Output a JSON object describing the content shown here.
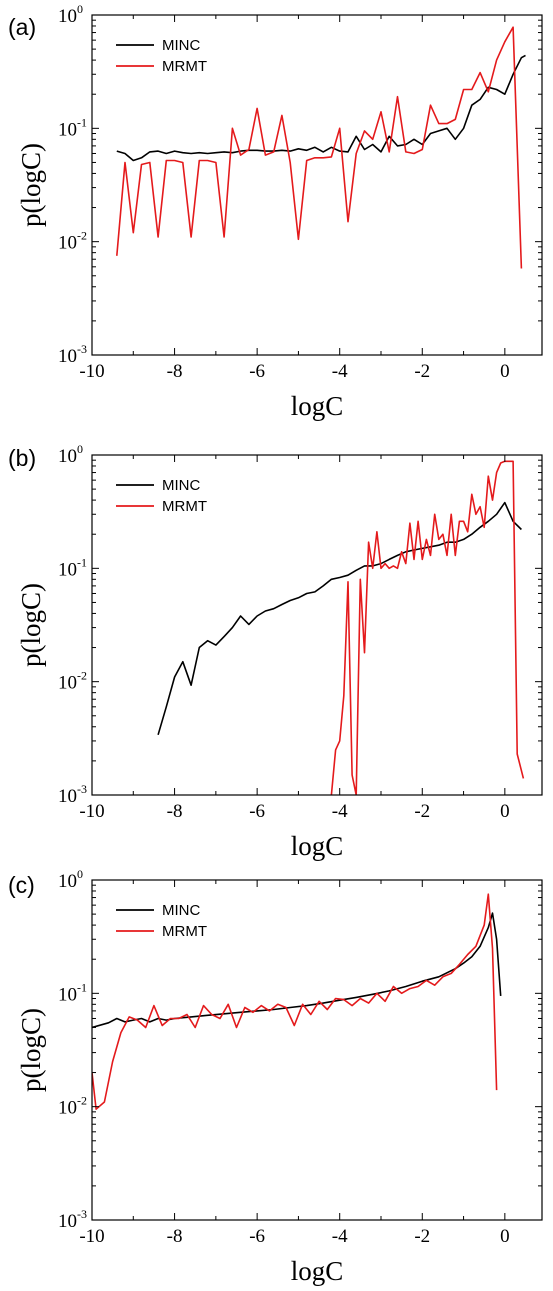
{
  "chart_data": [
    {
      "type": "line",
      "panel_label": "(a)",
      "xlabel": "logC",
      "ylabel": "p(logC)",
      "x_ticks": [
        "-10",
        "-8",
        "-6",
        "-4",
        "-2",
        "0"
      ],
      "y_ticks": [
        "10",
        "10",
        "10",
        "10"
      ],
      "y_tick_exponents": [
        "-3",
        "-2",
        "-1",
        "0"
      ],
      "xlim": [
        -10,
        0.9
      ],
      "ylim": [
        0.001,
        1
      ],
      "yscale": "log",
      "grid": false,
      "legend_position": "top-left",
      "series": [
        {
          "name": "MINC",
          "color": "#000000",
          "x": [
            -9.4,
            -9.2,
            -9.0,
            -8.8,
            -8.6,
            -8.4,
            -8.2,
            -8.0,
            -7.8,
            -7.6,
            -7.4,
            -7.2,
            -7.0,
            -6.8,
            -6.6,
            -6.4,
            -6.2,
            -6.0,
            -5.8,
            -5.6,
            -5.4,
            -5.2,
            -5.0,
            -4.8,
            -4.6,
            -4.4,
            -4.2,
            -4.0,
            -3.8,
            -3.6,
            -3.4,
            -3.2,
            -3.0,
            -2.8,
            -2.6,
            -2.4,
            -2.2,
            -2.0,
            -1.8,
            -1.6,
            -1.4,
            -1.2,
            -1.0,
            -0.8,
            -0.6,
            -0.4,
            -0.2,
            0.0,
            0.2,
            0.4,
            0.5
          ],
          "y": [
            0.063,
            0.06,
            0.052,
            0.055,
            0.062,
            0.063,
            0.06,
            0.063,
            0.061,
            0.06,
            0.061,
            0.06,
            0.061,
            0.062,
            0.061,
            0.063,
            0.064,
            0.064,
            0.063,
            0.063,
            0.064,
            0.063,
            0.066,
            0.064,
            0.068,
            0.062,
            0.068,
            0.063,
            0.062,
            0.085,
            0.065,
            0.072,
            0.062,
            0.085,
            0.07,
            0.072,
            0.08,
            0.072,
            0.09,
            0.095,
            0.1,
            0.08,
            0.1,
            0.16,
            0.18,
            0.23,
            0.22,
            0.2,
            0.3,
            0.42,
            0.44
          ]
        },
        {
          "name": "MRMT",
          "color": "#e41a1c",
          "x": [
            -9.4,
            -9.2,
            -9.0,
            -8.8,
            -8.6,
            -8.4,
            -8.2,
            -8.0,
            -7.8,
            -7.6,
            -7.4,
            -7.2,
            -7.0,
            -6.8,
            -6.6,
            -6.4,
            -6.2,
            -6.0,
            -5.8,
            -5.6,
            -5.4,
            -5.2,
            -5.0,
            -4.8,
            -4.6,
            -4.4,
            -4.2,
            -4.0,
            -3.8,
            -3.6,
            -3.4,
            -3.2,
            -3.0,
            -2.8,
            -2.6,
            -2.4,
            -2.2,
            -2.0,
            -1.8,
            -1.6,
            -1.4,
            -1.2,
            -1.0,
            -0.8,
            -0.6,
            -0.4,
            -0.2,
            0.0,
            0.2,
            0.4
          ],
          "y": [
            0.0075,
            0.05,
            0.012,
            0.048,
            0.05,
            0.011,
            0.052,
            0.052,
            0.05,
            0.011,
            0.052,
            0.052,
            0.05,
            0.011,
            0.1,
            0.058,
            0.065,
            0.15,
            0.058,
            0.062,
            0.13,
            0.05,
            0.0105,
            0.052,
            0.055,
            0.055,
            0.056,
            0.1,
            0.015,
            0.06,
            0.095,
            0.08,
            0.14,
            0.062,
            0.19,
            0.062,
            0.06,
            0.065,
            0.16,
            0.11,
            0.11,
            0.12,
            0.22,
            0.22,
            0.31,
            0.21,
            0.4,
            0.58,
            0.78,
            0.0058
          ]
        }
      ]
    },
    {
      "type": "line",
      "panel_label": "(b)",
      "xlabel": "logC",
      "ylabel": "p(logC)",
      "x_ticks": [
        "-10",
        "-8",
        "-6",
        "-4",
        "-2",
        "0"
      ],
      "y_ticks": [
        "10",
        "10",
        "10",
        "10"
      ],
      "y_tick_exponents": [
        "-3",
        "-2",
        "-1",
        "0"
      ],
      "xlim": [
        -10,
        0.9
      ],
      "ylim": [
        0.001,
        1
      ],
      "yscale": "log",
      "grid": false,
      "legend_position": "top-left",
      "series": [
        {
          "name": "MINC",
          "color": "#000000",
          "x": [
            -8.4,
            -8.2,
            -8.0,
            -7.8,
            -7.6,
            -7.4,
            -7.2,
            -7.0,
            -6.8,
            -6.6,
            -6.4,
            -6.2,
            -6.0,
            -5.8,
            -5.6,
            -5.4,
            -5.2,
            -5.0,
            -4.8,
            -4.6,
            -4.4,
            -4.2,
            -4.0,
            -3.8,
            -3.6,
            -3.4,
            -3.2,
            -3.0,
            -2.8,
            -2.6,
            -2.4,
            -2.2,
            -2.0,
            -1.8,
            -1.6,
            -1.4,
            -1.2,
            -1.0,
            -0.8,
            -0.6,
            -0.4,
            -0.2,
            0.0,
            0.2,
            0.4
          ],
          "y": [
            0.0034,
            0.006,
            0.011,
            0.015,
            0.0093,
            0.02,
            0.023,
            0.021,
            0.025,
            0.03,
            0.038,
            0.032,
            0.038,
            0.042,
            0.044,
            0.048,
            0.052,
            0.055,
            0.06,
            0.062,
            0.07,
            0.08,
            0.083,
            0.087,
            0.096,
            0.105,
            0.105,
            0.11,
            0.12,
            0.13,
            0.14,
            0.145,
            0.15,
            0.155,
            0.16,
            0.17,
            0.17,
            0.18,
            0.2,
            0.23,
            0.26,
            0.3,
            0.38,
            0.26,
            0.22
          ]
        },
        {
          "name": "MRMT",
          "color": "#e41a1c",
          "x": [
            -4.2,
            -4.1,
            -4.0,
            -3.9,
            -3.8,
            -3.7,
            -3.6,
            -3.5,
            -3.4,
            -3.3,
            -3.2,
            -3.1,
            -3.0,
            -2.9,
            -2.8,
            -2.7,
            -2.6,
            -2.5,
            -2.4,
            -2.3,
            -2.2,
            -2.1,
            -2.0,
            -1.9,
            -1.8,
            -1.7,
            -1.6,
            -1.5,
            -1.4,
            -1.3,
            -1.2,
            -1.1,
            -1.0,
            -0.9,
            -0.8,
            -0.7,
            -0.6,
            -0.5,
            -0.4,
            -0.3,
            -0.2,
            -0.1,
            0.0,
            0.1,
            0.2,
            0.3,
            0.45
          ],
          "y": [
            0.001,
            0.0025,
            0.003,
            0.0075,
            0.076,
            0.0015,
            0.001,
            0.08,
            0.018,
            0.17,
            0.1,
            0.21,
            0.1,
            0.11,
            0.1,
            0.105,
            0.1,
            0.14,
            0.11,
            0.25,
            0.12,
            0.26,
            0.12,
            0.18,
            0.13,
            0.3,
            0.18,
            0.2,
            0.13,
            0.3,
            0.13,
            0.26,
            0.26,
            0.21,
            0.45,
            0.3,
            0.35,
            0.23,
            0.65,
            0.4,
            0.7,
            0.85,
            0.88,
            0.88,
            0.88,
            0.0023,
            0.0014
          ]
        }
      ]
    },
    {
      "type": "line",
      "panel_label": "(c)",
      "xlabel": "logC",
      "ylabel": "p(logC)",
      "x_ticks": [
        "-10",
        "-8",
        "-6",
        "-4",
        "-2",
        "0"
      ],
      "y_ticks": [
        "10",
        "10",
        "10",
        "10"
      ],
      "y_tick_exponents": [
        "-3",
        "-2",
        "-1",
        "0"
      ],
      "xlim": [
        -10,
        0.9
      ],
      "ylim": [
        0.001,
        1
      ],
      "yscale": "log",
      "grid": false,
      "legend_position": "top-left",
      "series": [
        {
          "name": "MINC",
          "color": "#000000",
          "x": [
            -10.0,
            -9.6,
            -9.4,
            -9.2,
            -9.0,
            -8.8,
            -8.6,
            -8.4,
            -8.2,
            -8.0,
            -7.6,
            -7.2,
            -6.8,
            -6.4,
            -6.0,
            -5.6,
            -5.2,
            -4.8,
            -4.4,
            -4.0,
            -3.6,
            -3.2,
            -2.8,
            -2.4,
            -2.0,
            -1.6,
            -1.2,
            -1.0,
            -0.8,
            -0.6,
            -0.4,
            -0.3,
            -0.2,
            -0.1
          ],
          "y": [
            0.05,
            0.055,
            0.06,
            0.056,
            0.058,
            0.06,
            0.056,
            0.06,
            0.058,
            0.06,
            0.062,
            0.064,
            0.066,
            0.068,
            0.07,
            0.072,
            0.075,
            0.078,
            0.082,
            0.087,
            0.092,
            0.098,
            0.105,
            0.115,
            0.128,
            0.14,
            0.165,
            0.185,
            0.21,
            0.26,
            0.38,
            0.51,
            0.3,
            0.095
          ]
        },
        {
          "name": "MRMT",
          "color": "#e41a1c",
          "x": [
            -10.0,
            -9.9,
            -9.7,
            -9.5,
            -9.3,
            -9.1,
            -8.9,
            -8.7,
            -8.5,
            -8.3,
            -8.1,
            -7.9,
            -7.7,
            -7.5,
            -7.3,
            -7.1,
            -6.9,
            -6.7,
            -6.5,
            -6.3,
            -6.1,
            -5.9,
            -5.7,
            -5.5,
            -5.3,
            -5.1,
            -4.9,
            -4.7,
            -4.5,
            -4.3,
            -4.1,
            -3.9,
            -3.7,
            -3.5,
            -3.3,
            -3.1,
            -2.9,
            -2.7,
            -2.5,
            -2.3,
            -2.1,
            -1.9,
            -1.7,
            -1.5,
            -1.3,
            -1.1,
            -0.9,
            -0.7,
            -0.5,
            -0.4,
            -0.3,
            -0.2
          ],
          "y": [
            0.02,
            0.0095,
            0.011,
            0.025,
            0.045,
            0.062,
            0.058,
            0.05,
            0.078,
            0.052,
            0.06,
            0.06,
            0.065,
            0.05,
            0.078,
            0.065,
            0.06,
            0.08,
            0.05,
            0.075,
            0.068,
            0.078,
            0.07,
            0.08,
            0.075,
            0.052,
            0.08,
            0.065,
            0.085,
            0.072,
            0.09,
            0.088,
            0.078,
            0.09,
            0.082,
            0.1,
            0.085,
            0.115,
            0.1,
            0.11,
            0.115,
            0.13,
            0.118,
            0.14,
            0.15,
            0.18,
            0.22,
            0.26,
            0.4,
            0.75,
            0.25,
            0.014
          ]
        }
      ]
    }
  ]
}
